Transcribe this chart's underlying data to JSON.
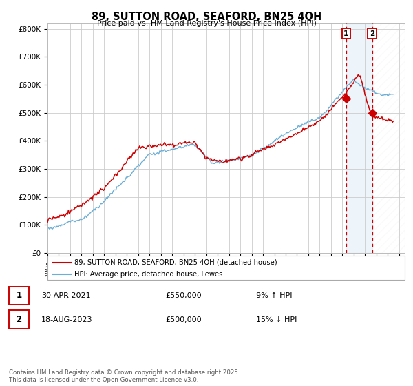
{
  "title": "89, SUTTON ROAD, SEAFORD, BN25 4QH",
  "subtitle": "Price paid vs. HM Land Registry's House Price Index (HPI)",
  "ylabel_ticks": [
    "£0",
    "£100K",
    "£200K",
    "£300K",
    "£400K",
    "£500K",
    "£600K",
    "£700K",
    "£800K"
  ],
  "ytick_values": [
    0,
    100000,
    200000,
    300000,
    400000,
    500000,
    600000,
    700000,
    800000
  ],
  "ylim": [
    0,
    820000
  ],
  "xlim_start": 1995.0,
  "xlim_end": 2026.5,
  "legend_line1": "89, SUTTON ROAD, SEAFORD, BN25 4QH (detached house)",
  "legend_line2": "HPI: Average price, detached house, Lewes",
  "sale1_date": "30-APR-2021",
  "sale1_price": "£550,000",
  "sale1_hpi": "9% ↑ HPI",
  "sale2_date": "18-AUG-2023",
  "sale2_price": "£500,000",
  "sale2_hpi": "15% ↓ HPI",
  "footer": "Contains HM Land Registry data © Crown copyright and database right 2025.\nThis data is licensed under the Open Government Licence v3.0.",
  "hpi_color": "#6baed6",
  "price_color": "#cc0000",
  "sale1_x": 2021.33,
  "sale1_y": 550000,
  "sale2_x": 2023.62,
  "sale2_y": 500000,
  "bg_color": "#ffffff",
  "grid_color": "#cccccc",
  "fill_between_color": "#ddeeff"
}
